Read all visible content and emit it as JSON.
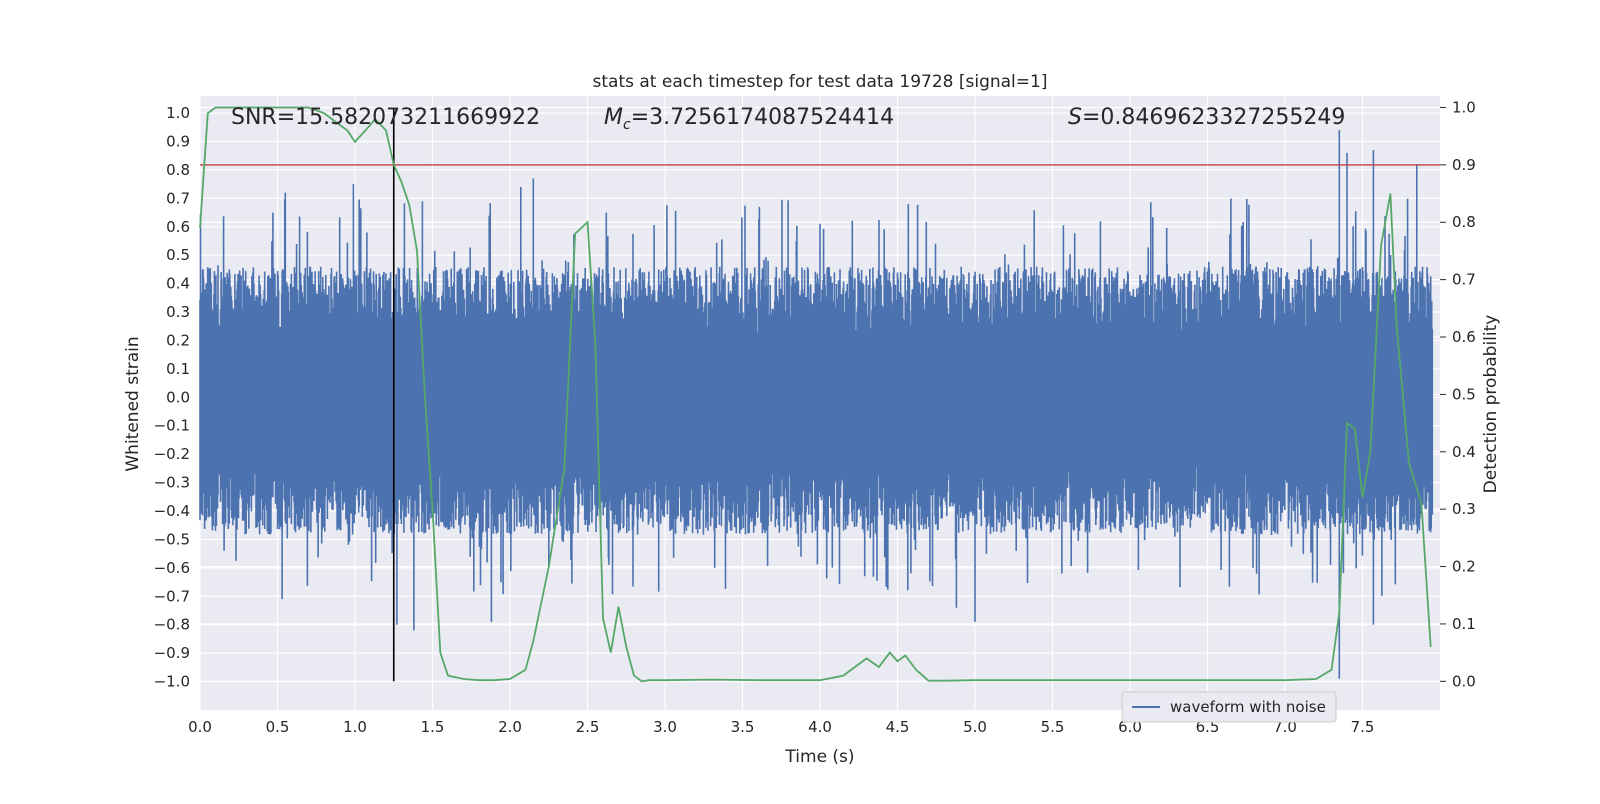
{
  "chart_data": {
    "type": "line",
    "title": "stats at each timestep for test data 19728 [signal=1]",
    "xlabel": "Time (s)",
    "ylabel": "Whitened strain",
    "ylabel_right": "Detection probability",
    "xlim": [
      0.0,
      8.0
    ],
    "ylim": [
      -1.1,
      1.06
    ],
    "ylim_right": [
      -0.05,
      1.02
    ],
    "x_ticks": [
      "0.0",
      "0.5",
      "1.0",
      "1.5",
      "2.0",
      "2.5",
      "3.0",
      "3.5",
      "4.0",
      "4.5",
      "5.0",
      "5.5",
      "6.0",
      "6.5",
      "7.0",
      "7.5"
    ],
    "y_ticks": [
      "1.0",
      "0.9",
      "0.8",
      "0.7",
      "0.6",
      "0.5",
      "0.4",
      "0.3",
      "0.2",
      "0.1",
      "0.0",
      "−0.1",
      "−0.2",
      "−0.3",
      "−0.4",
      "−0.5",
      "−0.6",
      "−0.7",
      "−0.8",
      "−0.9",
      "−1.0"
    ],
    "y_right_ticks": [
      "1.0",
      "0.9",
      "0.8",
      "0.7",
      "0.6",
      "0.5",
      "0.4",
      "0.3",
      "0.2",
      "0.1",
      "0.0"
    ],
    "annotations": {
      "snr": "SNR=15.582073211669922",
      "mc_symbol": "M",
      "mc_sub": "c",
      "mc_value": "=3.7256174087524414",
      "s_symbol": "S",
      "s_value": "=0.8469623327255249"
    },
    "threshold": 0.9,
    "marker_time": 1.25,
    "grid": true,
    "legend": {
      "position": "lower-right",
      "entries": [
        "waveform with noise"
      ]
    },
    "series": [
      {
        "name": "waveform with noise",
        "axis": "left",
        "color": "#4c72b0",
        "approx_envelope": [
          0.4,
          -0.42
        ],
        "notable_peaks": [
          [
            0.55,
            0.72
          ],
          [
            0.99,
            0.75
          ],
          [
            2.07,
            0.74
          ],
          [
            2.15,
            0.77
          ],
          [
            7.35,
            0.94
          ],
          [
            7.4,
            0.86
          ],
          [
            7.57,
            0.87
          ],
          [
            7.85,
            0.82
          ]
        ],
        "notable_troughs": [
          [
            0.53,
            -0.71
          ],
          [
            1.27,
            -0.8
          ],
          [
            1.38,
            -0.82
          ],
          [
            1.88,
            -0.79
          ],
          [
            4.88,
            -0.74
          ],
          [
            5.0,
            -0.79
          ],
          [
            7.35,
            -0.99
          ],
          [
            7.57,
            -0.8
          ]
        ]
      },
      {
        "name": "detection probability",
        "axis": "right",
        "color": "#55a868",
        "x": [
          0.0,
          0.05,
          0.1,
          0.2,
          0.35,
          0.5,
          0.7,
          0.8,
          0.85,
          0.95,
          1.0,
          1.1,
          1.13,
          1.2,
          1.25,
          1.3,
          1.35,
          1.4,
          1.45,
          1.5,
          1.55,
          1.6,
          1.7,
          1.8,
          1.9,
          2.0,
          2.1,
          2.15,
          2.25,
          2.35,
          2.42,
          2.5,
          2.55,
          2.6,
          2.65,
          2.7,
          2.75,
          2.8,
          2.85,
          2.9,
          3.0,
          3.3,
          3.6,
          3.8,
          4.0,
          4.15,
          4.25,
          4.3,
          4.38,
          4.45,
          4.5,
          4.55,
          4.62,
          4.7,
          4.8,
          5.0,
          5.5,
          5.7,
          6.0,
          6.5,
          7.0,
          7.2,
          7.3,
          7.35,
          7.4,
          7.45,
          7.5,
          7.55,
          7.62,
          7.68,
          7.72,
          7.8,
          7.88,
          7.94
        ],
        "values": [
          0.79,
          0.99,
          1.0,
          1.0,
          1.0,
          1.0,
          1.0,
          0.99,
          0.98,
          0.96,
          0.94,
          0.97,
          0.98,
          0.96,
          0.9,
          0.87,
          0.83,
          0.75,
          0.5,
          0.3,
          0.05,
          0.01,
          0.004,
          0.002,
          0.002,
          0.004,
          0.02,
          0.07,
          0.2,
          0.37,
          0.78,
          0.8,
          0.59,
          0.11,
          0.05,
          0.13,
          0.06,
          0.01,
          0.0,
          0.002,
          0.002,
          0.003,
          0.002,
          0.002,
          0.002,
          0.01,
          0.03,
          0.04,
          0.025,
          0.05,
          0.035,
          0.045,
          0.02,
          0.001,
          0.001,
          0.002,
          0.002,
          0.002,
          0.002,
          0.002,
          0.002,
          0.004,
          0.02,
          0.12,
          0.45,
          0.44,
          0.32,
          0.4,
          0.76,
          0.85,
          0.62,
          0.38,
          0.31,
          0.06
        ]
      }
    ]
  }
}
